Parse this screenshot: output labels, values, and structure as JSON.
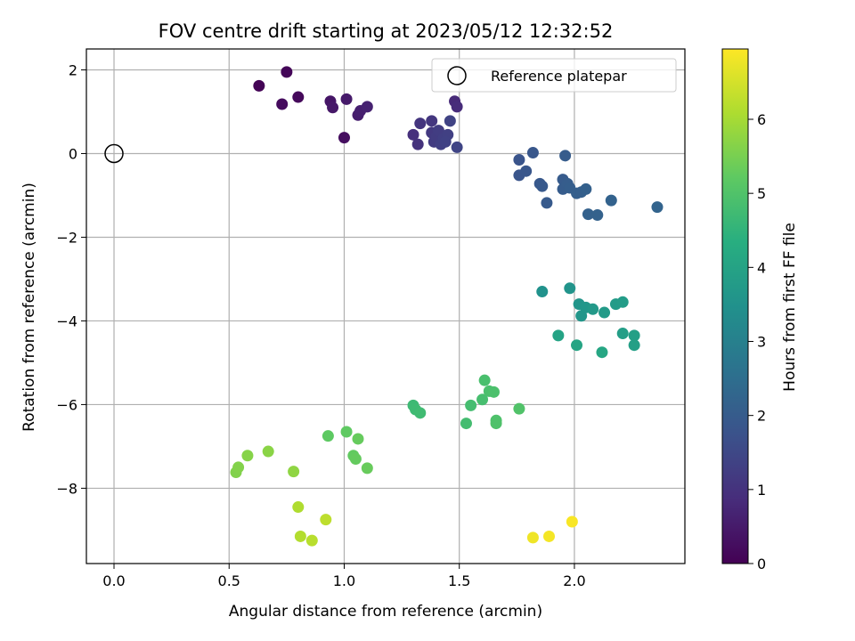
{
  "chart_data": {
    "type": "scatter",
    "title": "FOV centre drift starting at 2023/05/12 12:32:52",
    "xlabel": "Angular distance from reference (arcmin)",
    "ylabel": "Rotation from reference (arcmin)",
    "xlim": [
      -0.12,
      2.48
    ],
    "ylim": [
      -9.8,
      2.5
    ],
    "xticks": [
      0.0,
      0.5,
      1.0,
      1.5,
      2.0
    ],
    "xtick_labels": [
      "0.0",
      "0.5",
      "1.0",
      "1.5",
      "2.0"
    ],
    "yticks": [
      2,
      0,
      -2,
      -4,
      -6,
      -8
    ],
    "ytick_labels": [
      "2",
      "0",
      "−2",
      "−4",
      "−6",
      "−8"
    ],
    "grid": true,
    "legend": {
      "placement": "top-right",
      "entries": [
        "Reference platepar"
      ]
    },
    "reference_point": {
      "x": 0.0,
      "y": 0.0,
      "label": "Reference platepar"
    },
    "colorbar": {
      "label": "Hours from first FF file",
      "colormap": "viridis",
      "range": [
        0,
        6.95
      ],
      "ticks": [
        0,
        1,
        2,
        3,
        4,
        5,
        6
      ],
      "tick_labels": [
        "0",
        "1",
        "2",
        "3",
        "4",
        "5",
        "6"
      ]
    },
    "points": [
      {
        "x": 0.63,
        "y": 1.62,
        "t": 0.05
      },
      {
        "x": 0.75,
        "y": 1.95,
        "t": 0.1
      },
      {
        "x": 0.8,
        "y": 1.35,
        "t": 0.15
      },
      {
        "x": 0.73,
        "y": 1.18,
        "t": 0.2
      },
      {
        "x": 1.0,
        "y": 0.38,
        "t": 0.25
      },
      {
        "x": 0.94,
        "y": 1.25,
        "t": 0.4
      },
      {
        "x": 0.95,
        "y": 1.1,
        "t": 0.45
      },
      {
        "x": 1.01,
        "y": 1.3,
        "t": 0.5
      },
      {
        "x": 1.06,
        "y": 0.92,
        "t": 0.55
      },
      {
        "x": 1.07,
        "y": 1.02,
        "t": 0.6
      },
      {
        "x": 1.1,
        "y": 1.12,
        "t": 0.65
      },
      {
        "x": 1.48,
        "y": 1.25,
        "t": 0.8
      },
      {
        "x": 1.49,
        "y": 1.12,
        "t": 0.85
      },
      {
        "x": 1.3,
        "y": 0.45,
        "t": 0.95
      },
      {
        "x": 1.32,
        "y": 0.22,
        "t": 1.0
      },
      {
        "x": 1.33,
        "y": 0.72,
        "t": 1.05
      },
      {
        "x": 1.38,
        "y": 0.78,
        "t": 1.1
      },
      {
        "x": 1.38,
        "y": 0.5,
        "t": 1.15
      },
      {
        "x": 1.39,
        "y": 0.28,
        "t": 1.2
      },
      {
        "x": 1.4,
        "y": 0.4,
        "t": 1.22
      },
      {
        "x": 1.41,
        "y": 0.55,
        "t": 1.25
      },
      {
        "x": 1.42,
        "y": 0.22,
        "t": 1.28
      },
      {
        "x": 1.43,
        "y": 0.35,
        "t": 1.3
      },
      {
        "x": 1.45,
        "y": 0.45,
        "t": 1.32
      },
      {
        "x": 1.44,
        "y": 0.28,
        "t": 1.35
      },
      {
        "x": 1.46,
        "y": 0.78,
        "t": 1.38
      },
      {
        "x": 1.49,
        "y": 0.15,
        "t": 1.42
      },
      {
        "x": 1.76,
        "y": -0.15,
        "t": 1.8
      },
      {
        "x": 1.76,
        "y": -0.52,
        "t": 1.82
      },
      {
        "x": 1.79,
        "y": -0.42,
        "t": 1.85
      },
      {
        "x": 1.82,
        "y": 0.02,
        "t": 1.88
      },
      {
        "x": 1.85,
        "y": -0.72,
        "t": 1.9
      },
      {
        "x": 1.86,
        "y": -0.78,
        "t": 1.92
      },
      {
        "x": 1.88,
        "y": -1.18,
        "t": 1.95
      },
      {
        "x": 1.95,
        "y": -0.62,
        "t": 1.97
      },
      {
        "x": 1.95,
        "y": -0.85,
        "t": 2.0
      },
      {
        "x": 1.96,
        "y": -0.05,
        "t": 2.02
      },
      {
        "x": 1.97,
        "y": -0.72,
        "t": 2.04
      },
      {
        "x": 1.98,
        "y": -0.82,
        "t": 2.06
      },
      {
        "x": 2.01,
        "y": -0.95,
        "t": 2.08
      },
      {
        "x": 2.03,
        "y": -0.92,
        "t": 2.1
      },
      {
        "x": 2.05,
        "y": -0.85,
        "t": 2.12
      },
      {
        "x": 2.06,
        "y": -1.45,
        "t": 2.14
      },
      {
        "x": 2.1,
        "y": -1.47,
        "t": 2.16
      },
      {
        "x": 2.16,
        "y": -1.12,
        "t": 2.18
      },
      {
        "x": 2.36,
        "y": -1.28,
        "t": 2.22
      },
      {
        "x": 1.86,
        "y": -3.3,
        "t": 3.5
      },
      {
        "x": 1.98,
        "y": -3.22,
        "t": 3.55
      },
      {
        "x": 2.02,
        "y": -3.6,
        "t": 3.6
      },
      {
        "x": 2.03,
        "y": -3.88,
        "t": 3.62
      },
      {
        "x": 2.05,
        "y": -3.68,
        "t": 3.65
      },
      {
        "x": 2.08,
        "y": -3.72,
        "t": 3.7
      },
      {
        "x": 2.13,
        "y": -3.8,
        "t": 3.75
      },
      {
        "x": 2.18,
        "y": -3.6,
        "t": 3.78
      },
      {
        "x": 2.21,
        "y": -3.55,
        "t": 3.8
      },
      {
        "x": 2.21,
        "y": -4.3,
        "t": 3.85
      },
      {
        "x": 2.26,
        "y": -4.35,
        "t": 3.88
      },
      {
        "x": 2.26,
        "y": -4.58,
        "t": 3.9
      },
      {
        "x": 1.93,
        "y": -4.35,
        "t": 4.0
      },
      {
        "x": 2.01,
        "y": -4.58,
        "t": 4.05
      },
      {
        "x": 2.12,
        "y": -4.75,
        "t": 4.1
      },
      {
        "x": 1.3,
        "y": -6.02,
        "t": 4.7
      },
      {
        "x": 1.31,
        "y": -6.12,
        "t": 4.72
      },
      {
        "x": 1.33,
        "y": -6.2,
        "t": 4.75
      },
      {
        "x": 1.53,
        "y": -6.45,
        "t": 4.8
      },
      {
        "x": 1.55,
        "y": -6.02,
        "t": 4.82
      },
      {
        "x": 1.6,
        "y": -5.88,
        "t": 4.85
      },
      {
        "x": 1.61,
        "y": -5.42,
        "t": 4.88
      },
      {
        "x": 1.63,
        "y": -5.68,
        "t": 4.9
      },
      {
        "x": 1.65,
        "y": -5.7,
        "t": 4.92
      },
      {
        "x": 1.66,
        "y": -6.38,
        "t": 4.95
      },
      {
        "x": 1.66,
        "y": -6.45,
        "t": 4.97
      },
      {
        "x": 1.76,
        "y": -6.1,
        "t": 5.0
      },
      {
        "x": 0.93,
        "y": -6.75,
        "t": 5.2
      },
      {
        "x": 1.01,
        "y": -6.65,
        "t": 5.22
      },
      {
        "x": 1.04,
        "y": -7.22,
        "t": 5.25
      },
      {
        "x": 1.05,
        "y": -7.3,
        "t": 5.28
      },
      {
        "x": 1.06,
        "y": -6.82,
        "t": 5.3
      },
      {
        "x": 1.1,
        "y": -7.52,
        "t": 5.32
      },
      {
        "x": 0.53,
        "y": -7.62,
        "t": 5.6
      },
      {
        "x": 0.54,
        "y": -7.5,
        "t": 5.62
      },
      {
        "x": 0.58,
        "y": -7.22,
        "t": 5.65
      },
      {
        "x": 0.67,
        "y": -7.12,
        "t": 5.7
      },
      {
        "x": 0.78,
        "y": -7.6,
        "t": 5.75
      },
      {
        "x": 0.8,
        "y": -8.45,
        "t": 6.1
      },
      {
        "x": 0.81,
        "y": -9.15,
        "t": 6.15
      },
      {
        "x": 0.86,
        "y": -9.25,
        "t": 6.2
      },
      {
        "x": 0.92,
        "y": -8.75,
        "t": 6.25
      },
      {
        "x": 1.82,
        "y": -9.18,
        "t": 6.8
      },
      {
        "x": 1.89,
        "y": -9.15,
        "t": 6.85
      },
      {
        "x": 1.99,
        "y": -8.8,
        "t": 6.9
      }
    ]
  }
}
